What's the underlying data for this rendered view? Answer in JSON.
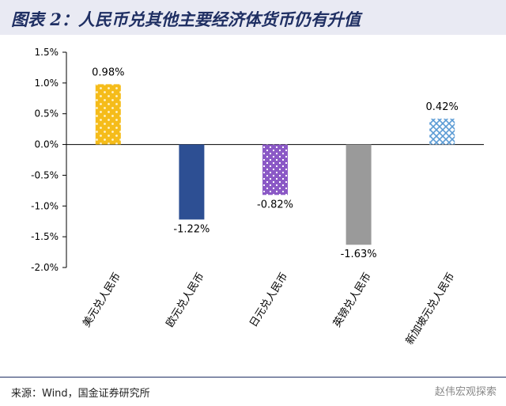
{
  "title": "图表 2：人民币兑其他主要经济体货币仍有升值",
  "source": "来源：Wind，国金证券研究所",
  "watermark": "赵伟宏观探索",
  "chart_data": {
    "type": "bar",
    "categories": [
      "美元兑人民币",
      "欧元兑人民币",
      "日元兑人民币",
      "英镑兑人民币",
      "新加坡元兑人民币"
    ],
    "values": [
      0.98,
      -1.22,
      -0.82,
      -1.63,
      0.42
    ],
    "value_labels": [
      "0.98%",
      "-1.22%",
      "-0.82%",
      "-1.63%",
      "0.42%"
    ],
    "ylim": [
      -2.0,
      1.5
    ],
    "yticks": [
      1.5,
      1.0,
      0.5,
      0.0,
      -0.5,
      -1.0,
      -1.5,
      -2.0
    ],
    "ytick_labels": [
      "1.5%",
      "1.0%",
      "0.5%",
      "0.0%",
      "-0.5%",
      "-1.0%",
      "-1.5%",
      "-2.0%"
    ],
    "colors": [
      "#f5bc1a",
      "#2d4f93",
      "#8b59c6",
      "#9a9a9a",
      "#5b9bd5"
    ],
    "grid": false,
    "legend": "none"
  }
}
